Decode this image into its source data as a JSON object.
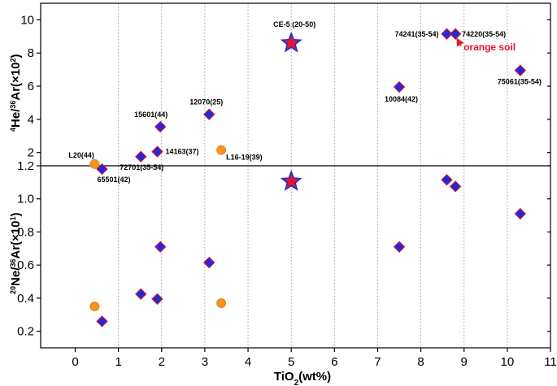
{
  "chart_data": [
    {
      "type": "scatter",
      "panel": "top",
      "ylabel": "4He/36Ar(×10²)",
      "ylabel_parts": {
        "mass1": "4",
        "el1": "He/",
        "mass2": "36",
        "el2": "Ar(×10",
        "exp": "2",
        "close": ")"
      },
      "ylim": [
        1.2,
        11
      ],
      "yticks": [
        "2",
        "4",
        "6",
        "8",
        "10"
      ],
      "series": [
        {
          "name": "diamonds",
          "marker": "diamond",
          "color": "#1f2bd6",
          "edge": "#e8112d",
          "points": [
            {
              "label": "65501(42)",
              "x": 0.62,
              "y": 1.0
            },
            {
              "label": "72701(35-54)",
              "x": 1.52,
              "y": 1.75
            },
            {
              "label": "14163(37)",
              "x": 1.9,
              "y": 2.05
            },
            {
              "label": "15601(44)",
              "x": 1.97,
              "y": 3.55
            },
            {
              "label": "12070(25)",
              "x": 3.1,
              "y": 4.3
            },
            {
              "label": "10084(42)",
              "x": 7.5,
              "y": 5.95
            },
            {
              "label": "74241(35-54)",
              "x": 8.6,
              "y": 9.15
            },
            {
              "label": "74220(35-54)",
              "x": 8.8,
              "y": 9.15
            },
            {
              "label": "75061(35-54)",
              "x": 10.3,
              "y": 6.95
            }
          ]
        },
        {
          "name": "circles",
          "marker": "circle",
          "color": "#f7931e",
          "points": [
            {
              "label": "L20(44)",
              "x": 0.45,
              "y": 1.3
            },
            {
              "label": "L16-19(39)",
              "x": 3.38,
              "y": 2.15
            }
          ]
        },
        {
          "name": "star",
          "marker": "star",
          "color": "#e8112d",
          "edge": "#1f2bd6",
          "points": [
            {
              "label": "CE-5 (20-50)",
              "x": 5.0,
              "y": 8.6
            }
          ]
        }
      ],
      "annotation": {
        "text": "orange soil",
        "target": "74220(35-54)"
      }
    },
    {
      "type": "scatter",
      "panel": "bottom",
      "ylabel": "20Ne/36Ar(×10¹)",
      "ylabel_parts": {
        "mass1": "20",
        "el1": "Ne/",
        "mass2": "36",
        "el2": "Ar(×10",
        "exp": "1",
        "close": ")"
      },
      "ylim": [
        0.1,
        1.2
      ],
      "yticks": [
        "0.2",
        "0.4",
        "0.6",
        "0.8",
        "1.0",
        "1.2"
      ],
      "xlabel": "TiO2(wt%)",
      "xlabel_parts": {
        "pre": "TiO",
        "sub": "2",
        "post": "(wt%)"
      },
      "xlim": [
        -0.8,
        11
      ],
      "xticks": [
        "0",
        "1",
        "2",
        "3",
        "4",
        "5",
        "6",
        "7",
        "8",
        "9",
        "10",
        "11"
      ],
      "series": [
        {
          "name": "diamonds",
          "marker": "diamond",
          "color": "#1f2bd6",
          "edge": "#e8112d",
          "points": [
            {
              "x": 0.62,
              "y": 0.26
            },
            {
              "x": 1.52,
              "y": 0.425
            },
            {
              "x": 1.9,
              "y": 0.395
            },
            {
              "x": 1.97,
              "y": 0.71
            },
            {
              "x": 3.1,
              "y": 0.615
            },
            {
              "x": 7.5,
              "y": 0.71
            },
            {
              "x": 8.6,
              "y": 1.115
            },
            {
              "x": 8.8,
              "y": 1.075
            },
            {
              "x": 10.3,
              "y": 0.91
            }
          ]
        },
        {
          "name": "circles",
          "marker": "circle",
          "color": "#f7931e",
          "points": [
            {
              "x": 0.45,
              "y": 0.35
            },
            {
              "x": 3.38,
              "y": 0.37
            }
          ]
        },
        {
          "name": "star",
          "marker": "star",
          "color": "#e8112d",
          "edge": "#1f2bd6",
          "points": [
            {
              "x": 5.0,
              "y": 1.105
            }
          ]
        }
      ]
    }
  ]
}
